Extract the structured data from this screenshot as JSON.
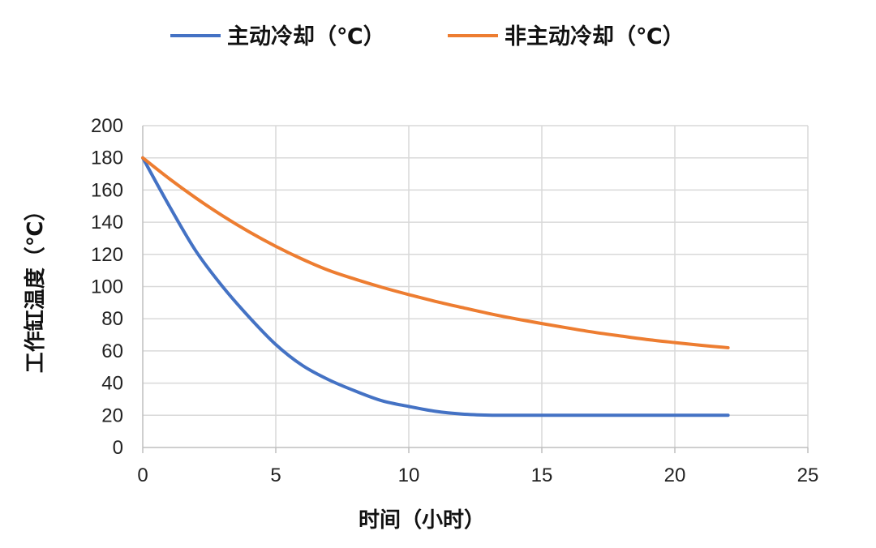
{
  "chart_data": {
    "type": "line",
    "xlabel": "时间（小时）",
    "ylabel": "工作缸温度（℃）",
    "xlim": [
      0,
      25
    ],
    "ylim": [
      0,
      200
    ],
    "x_ticks": [
      0,
      5,
      10,
      15,
      20,
      25
    ],
    "y_ticks": [
      0,
      20,
      40,
      60,
      80,
      100,
      120,
      140,
      160,
      180,
      200
    ],
    "grid": true,
    "legend_position": "top",
    "series": [
      {
        "name": "主动冷却（℃）",
        "color": "#4472C4",
        "points": [
          [
            0,
            180
          ],
          [
            1,
            150
          ],
          [
            2,
            122
          ],
          [
            3,
            100
          ],
          [
            4,
            81
          ],
          [
            5,
            64
          ],
          [
            6,
            51
          ],
          [
            7,
            42
          ],
          [
            8,
            35
          ],
          [
            9,
            29
          ],
          [
            10,
            25.5
          ],
          [
            11,
            22.5
          ],
          [
            12,
            20.8
          ],
          [
            13,
            20.1
          ],
          [
            14,
            20
          ],
          [
            16,
            20
          ],
          [
            18,
            20
          ],
          [
            20,
            20
          ],
          [
            22,
            20
          ]
        ]
      },
      {
        "name": "非主动冷却（℃）",
        "color": "#ED7D31",
        "points": [
          [
            0,
            180
          ],
          [
            1,
            167
          ],
          [
            2,
            155
          ],
          [
            3,
            144
          ],
          [
            4,
            134
          ],
          [
            5,
            125
          ],
          [
            6,
            117
          ],
          [
            7,
            110
          ],
          [
            8,
            104.5
          ],
          [
            9,
            99.5
          ],
          [
            10,
            95
          ],
          [
            11,
            90.8
          ],
          [
            12,
            87
          ],
          [
            13,
            83.3
          ],
          [
            14,
            80
          ],
          [
            15,
            77
          ],
          [
            16,
            74.2
          ],
          [
            17,
            71.5
          ],
          [
            18,
            69.2
          ],
          [
            19,
            67
          ],
          [
            20,
            65.2
          ],
          [
            21,
            63.5
          ],
          [
            22,
            62
          ]
        ]
      }
    ]
  }
}
